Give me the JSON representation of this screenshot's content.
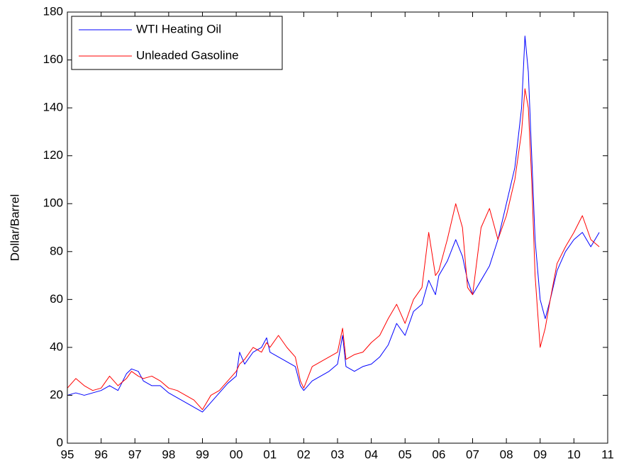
{
  "chart_data": {
    "type": "line",
    "ylabel": "Dollar/Barrel",
    "x": [
      1995.0,
      1995.25,
      1995.5,
      1995.75,
      1996.0,
      1996.25,
      1996.5,
      1996.75,
      1996.9,
      1997.1,
      1997.25,
      1997.5,
      1997.75,
      1998.0,
      1998.25,
      1998.5,
      1998.75,
      1999.0,
      1999.25,
      1999.5,
      1999.75,
      2000.0,
      2000.1,
      2000.25,
      2000.5,
      2000.75,
      2000.9,
      2001.0,
      2001.25,
      2001.5,
      2001.75,
      2001.9,
      2002.0,
      2002.25,
      2002.5,
      2002.75,
      2003.0,
      2003.15,
      2003.25,
      2003.5,
      2003.75,
      2004.0,
      2004.25,
      2004.5,
      2004.75,
      2005.0,
      2005.25,
      2005.5,
      2005.7,
      2005.9,
      2006.0,
      2006.25,
      2006.5,
      2006.7,
      2006.85,
      2007.0,
      2007.25,
      2007.5,
      2007.75,
      2008.0,
      2008.25,
      2008.45,
      2008.55,
      2008.65,
      2008.75,
      2008.85,
      2009.0,
      2009.15,
      2009.3,
      2009.5,
      2009.75,
      2010.0,
      2010.25,
      2010.5,
      2010.75
    ],
    "series": [
      {
        "name": "WTI Heating Oil",
        "color": "#0000ff",
        "values": [
          20,
          21,
          20,
          21,
          22,
          24,
          22,
          29,
          31,
          30,
          26,
          24,
          24,
          21,
          19,
          17,
          15,
          13,
          17,
          21,
          25,
          28,
          38,
          33,
          38,
          40,
          44,
          38,
          36,
          34,
          32,
          24,
          22,
          26,
          28,
          30,
          33,
          45,
          32,
          30,
          32,
          33,
          36,
          41,
          50,
          45,
          55,
          58,
          68,
          62,
          70,
          76,
          85,
          78,
          68,
          62,
          68,
          74,
          85,
          100,
          115,
          140,
          170,
          155,
          120,
          85,
          60,
          52,
          60,
          72,
          80,
          85,
          88,
          82,
          88
        ]
      },
      {
        "name": "Unleaded Gasoline",
        "color": "#ff0000",
        "values": [
          23,
          27,
          24,
          22,
          23,
          28,
          24,
          27,
          30,
          28,
          27,
          28,
          26,
          23,
          22,
          20,
          18,
          14,
          20,
          22,
          26,
          30,
          33,
          35,
          40,
          38,
          42,
          40,
          45,
          40,
          36,
          26,
          23,
          32,
          34,
          36,
          38,
          48,
          35,
          37,
          38,
          42,
          45,
          52,
          58,
          50,
          60,
          65,
          88,
          70,
          72,
          85,
          100,
          90,
          65,
          62,
          90,
          98,
          85,
          95,
          110,
          130,
          148,
          140,
          110,
          70,
          40,
          48,
          60,
          75,
          82,
          88,
          95,
          85,
          82
        ]
      }
    ],
    "xlim": [
      1995,
      2011
    ],
    "xticks": [
      {
        "value": 1995,
        "label": "95"
      },
      {
        "value": 1996,
        "label": "96"
      },
      {
        "value": 1997,
        "label": "97"
      },
      {
        "value": 1998,
        "label": "98"
      },
      {
        "value": 1999,
        "label": "99"
      },
      {
        "value": 2000,
        "label": "00"
      },
      {
        "value": 2001,
        "label": "01"
      },
      {
        "value": 2002,
        "label": "02"
      },
      {
        "value": 2003,
        "label": "03"
      },
      {
        "value": 2004,
        "label": "04"
      },
      {
        "value": 2005,
        "label": "05"
      },
      {
        "value": 2006,
        "label": "06"
      },
      {
        "value": 2007,
        "label": "07"
      },
      {
        "value": 2008,
        "label": "08"
      },
      {
        "value": 2009,
        "label": "09"
      },
      {
        "value": 2010,
        "label": "10"
      },
      {
        "value": 2011,
        "label": "11"
      }
    ],
    "ylim": [
      0,
      180
    ],
    "yticks": [
      0,
      20,
      40,
      60,
      80,
      100,
      120,
      140,
      160,
      180
    ],
    "legend": "upper left"
  }
}
